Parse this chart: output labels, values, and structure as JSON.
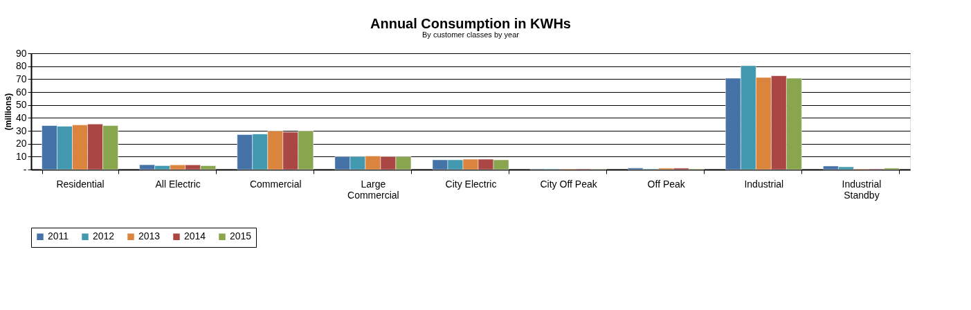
{
  "chart_data": {
    "type": "bar",
    "title": "Annual Consumption in KWHs",
    "subtitle": "By customer classes by year",
    "ylabel": "(millions)",
    "categories": [
      "Residential",
      "All Electric",
      "Commercial",
      "Large Commercial",
      "City Electric",
      "City Off Peak",
      "Off Peak",
      "Industrial",
      "Industrial Standby"
    ],
    "series": [
      {
        "name": "2011",
        "color": "#4572a7",
        "values": [
          34,
          3.7,
          27,
          10,
          7.5,
          0.5,
          1.2,
          70.7,
          2.7
        ]
      },
      {
        "name": "2012",
        "color": "#4198af",
        "values": [
          33.5,
          3.0,
          27.5,
          10,
          7.5,
          0.5,
          0.5,
          80.4,
          2.1
        ]
      },
      {
        "name": "2013",
        "color": "#db843d",
        "values": [
          34.5,
          3.6,
          29.8,
          10.5,
          8,
          0.5,
          1.1,
          71.3,
          0.5
        ]
      },
      {
        "name": "2014",
        "color": "#aa4643",
        "values": [
          35.2,
          3.6,
          29,
          10,
          8,
          0.5,
          1.1,
          72.6,
          0.5
        ]
      },
      {
        "name": "2015",
        "color": "#89a54e",
        "values": [
          34,
          3.0,
          29.8,
          10,
          7.5,
          0.5,
          0.5,
          70.7,
          1.1
        ]
      }
    ],
    "ylim": [
      0,
      90
    ],
    "yticks": [
      {
        "value": 0,
        "label": "-"
      },
      10,
      20,
      30,
      40,
      50,
      60,
      70,
      80,
      90
    ],
    "grid": "y",
    "legend": "bottom"
  }
}
